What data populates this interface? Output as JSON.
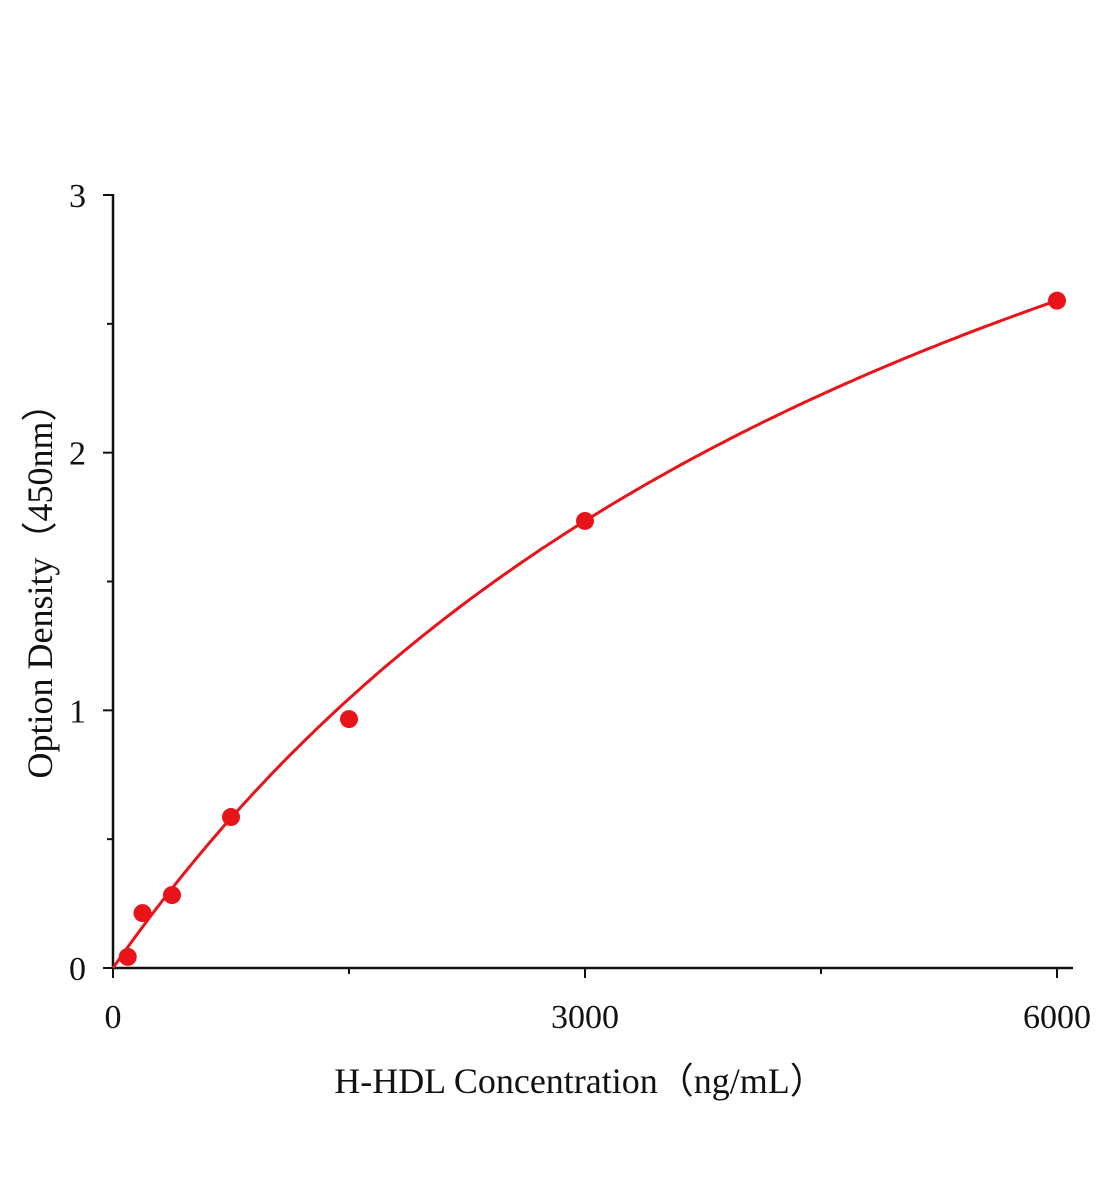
{
  "chart_data": {
    "type": "scatter",
    "title": "",
    "xlabel": "H-HDL Concentration（ng/mL）",
    "ylabel": "Option Density（450nm）",
    "xlim": [
      0,
      6100
    ],
    "ylim": [
      0,
      3
    ],
    "x_ticks": [
      "0",
      "3000",
      "6000"
    ],
    "y_ticks": [
      "0",
      "1",
      "2",
      "3"
    ],
    "grid": false,
    "series": [
      {
        "x": [
          93.75,
          187.5,
          375,
          750,
          1500,
          3000,
          6000
        ],
        "y": [
          0.043,
          0.213,
          0.283,
          0.586,
          0.966,
          1.735,
          2.59
        ],
        "color": "#e8141a",
        "fit_line": true
      }
    ]
  }
}
